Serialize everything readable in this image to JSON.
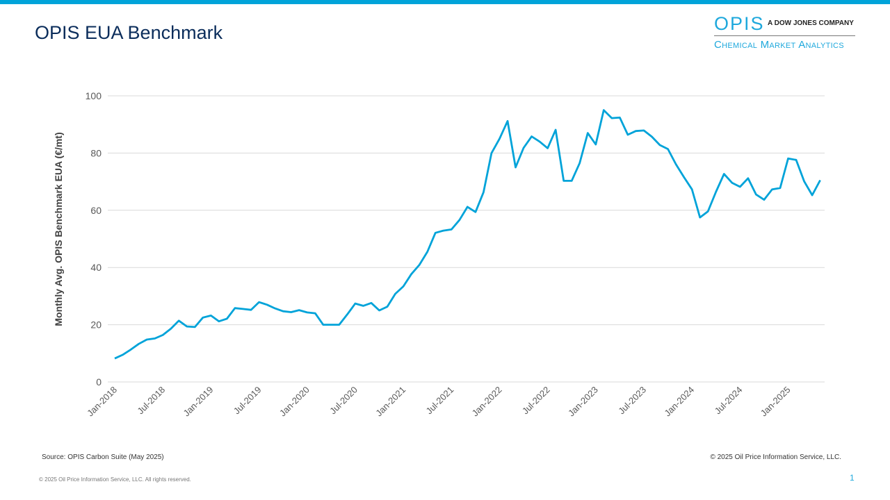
{
  "header": {
    "title": "OPIS EUA Benchmark"
  },
  "logo": {
    "brand": "OPIS",
    "tagline": "A DOW JONES COMPANY",
    "division": "Chemical Market Analytics"
  },
  "footer": {
    "source": "Source: OPIS Carbon Suite (May 2025)",
    "copyright": "© 2025 Oil Price Information Service, LLC.",
    "rights": "© 2025 Oil Price Information Service, LLC. All rights reserved.",
    "page": "1"
  },
  "colors": {
    "line": "#00a3d9",
    "grid": "#d9d9d9"
  },
  "chart_data": {
    "type": "line",
    "title": "OPIS EUA Benchmark",
    "xlabel": "",
    "ylabel": "Monthly Avg. OPIS Benchmark EUA (€/mt)",
    "ylim": [
      0,
      100
    ],
    "yticks": [
      0,
      20,
      40,
      60,
      80,
      100
    ],
    "grid": true,
    "x_start": "Jan-2018",
    "x_end": "May-2025",
    "xtick_labels": [
      "Jan-2018",
      "Jul-2018",
      "Jan-2019",
      "Jul-2019",
      "Jan-2020",
      "Jul-2020",
      "Jan-2021",
      "Jul-2021",
      "Jan-2022",
      "Jul-2022",
      "Jan-2023",
      "Jul-2023",
      "Jan-2024",
      "Jul-2024",
      "Jan-2025"
    ],
    "series": [
      {
        "name": "OPIS Benchmark EUA",
        "values": [
          8.2,
          9.5,
          11.3,
          13.3,
          14.8,
          15.2,
          16.4,
          18.6,
          21.4,
          19.4,
          19.2,
          22.5,
          23.2,
          21.2,
          22.1,
          25.8,
          25.5,
          25.2,
          27.9,
          27.0,
          25.7,
          24.7,
          24.4,
          25.1,
          24.3,
          24.0,
          20.0,
          20.0,
          20.0,
          23.6,
          27.4,
          26.6,
          27.6,
          25.0,
          26.3,
          30.8,
          33.4,
          37.7,
          40.9,
          45.5,
          52.1,
          52.9,
          53.3,
          56.6,
          61.2,
          59.4,
          66.3,
          80.0,
          85.0,
          91.2,
          75.0,
          81.8,
          85.8,
          84.0,
          81.7,
          88.1,
          70.3,
          70.3,
          76.5,
          87.0,
          83.0,
          95.0,
          92.2,
          92.4,
          86.4,
          87.7,
          87.9,
          85.7,
          82.8,
          81.4,
          76.1,
          71.6,
          67.3,
          57.5,
          59.6,
          66.5,
          72.7,
          69.6,
          68.2,
          71.2,
          65.5,
          63.7,
          67.3,
          67.8,
          78.1,
          77.6,
          70.1,
          65.3,
          70.5
        ]
      }
    ]
  }
}
